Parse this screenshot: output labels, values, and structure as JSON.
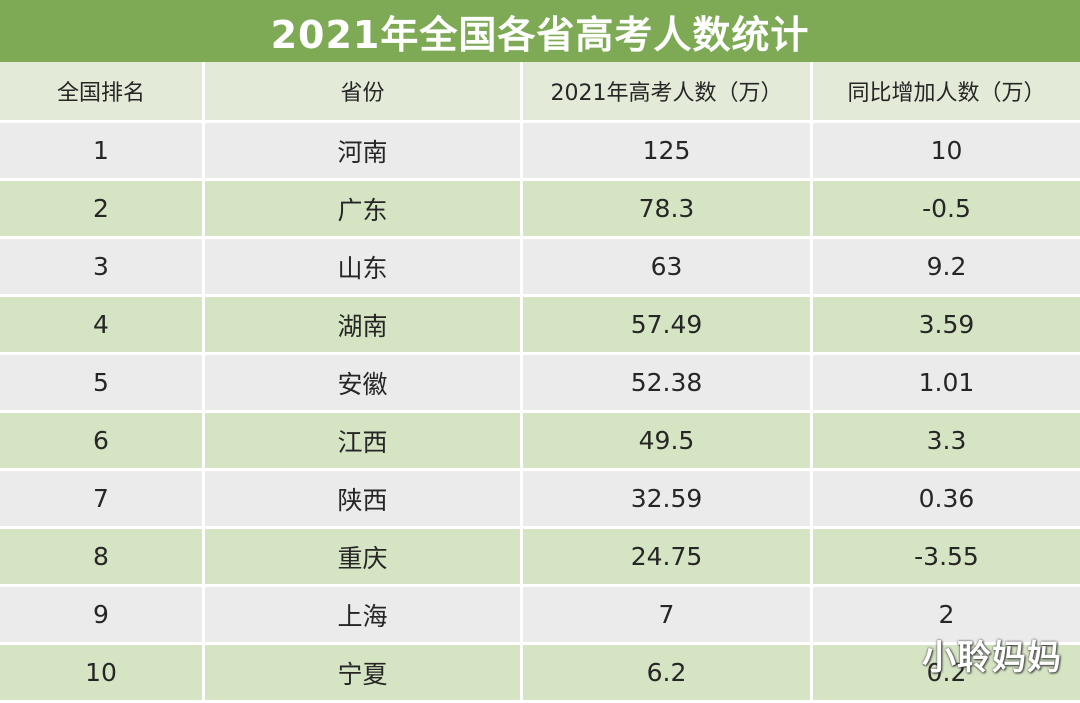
{
  "title": "2021年全国各省高考人数统计",
  "columns": [
    "全国排名",
    "省份",
    "2021年高考人数（万）",
    "同比增加人数（万）"
  ],
  "rows": [
    {
      "rank": "1",
      "province": "河南",
      "count": "125",
      "change": "10"
    },
    {
      "rank": "2",
      "province": "广东",
      "count": "78.3",
      "change": "-0.5"
    },
    {
      "rank": "3",
      "province": "山东",
      "count": "63",
      "change": "9.2"
    },
    {
      "rank": "4",
      "province": "湖南",
      "count": "57.49",
      "change": "3.59"
    },
    {
      "rank": "5",
      "province": "安徽",
      "count": "52.38",
      "change": "1.01"
    },
    {
      "rank": "6",
      "province": "江西",
      "count": "49.5",
      "change": "3.3"
    },
    {
      "rank": "7",
      "province": "陕西",
      "count": "32.59",
      "change": "0.36"
    },
    {
      "rank": "8",
      "province": "重庆",
      "count": "24.75",
      "change": "-3.55"
    },
    {
      "rank": "9",
      "province": "上海",
      "count": "7",
      "change": "2"
    },
    {
      "rank": "10",
      "province": "宁夏",
      "count": "6.2",
      "change": "0.2"
    }
  ],
  "watermark": "小聆妈妈",
  "colors": {
    "title_background": "#7eaa56",
    "header_background": "#e3ebd8",
    "row_gray": "#ebebeb",
    "row_green": "#d5e4c3"
  }
}
